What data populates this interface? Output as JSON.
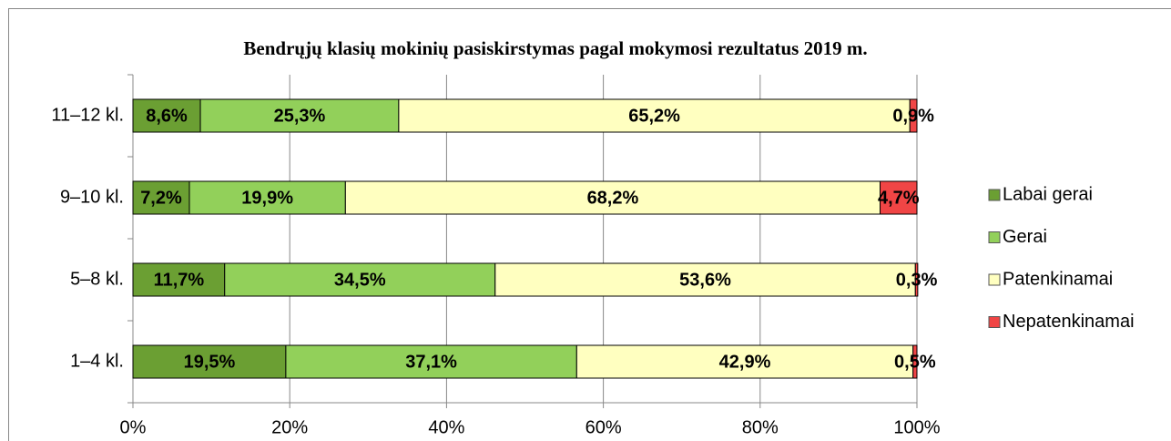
{
  "chart_data": {
    "type": "stacked_barh",
    "title": "Bendrųjų klasių mokinių pasiskirstymas pagal mokymosi rezultatus 2019 m.",
    "categories": [
      "11–12 kl.",
      "9–10 kl.",
      "5–8 kl.",
      "1–4 kl."
    ],
    "series": [
      {
        "name": "Labai gerai",
        "color": "#6b9f33",
        "values": [
          8.6,
          7.2,
          11.7,
          19.5
        ],
        "value_labels": [
          "8,6%",
          "7,2%",
          "11,7%",
          "19,5%"
        ]
      },
      {
        "name": "Gerai",
        "color": "#92d05a",
        "values": [
          25.3,
          19.9,
          34.5,
          37.1
        ],
        "value_labels": [
          "25,3%",
          "19,9%",
          "34,5%",
          "37,1%"
        ]
      },
      {
        "name": "Patenkinamai",
        "color": "#ffffc0",
        "values": [
          65.2,
          68.2,
          53.6,
          42.9
        ],
        "value_labels": [
          "65,2%",
          "68,2%",
          "53,6%",
          "42,9%"
        ]
      },
      {
        "name": "Nepatenkinamai",
        "color": "#f04545",
        "values": [
          0.9,
          4.7,
          0.3,
          0.5
        ],
        "value_labels": [
          "0,9%",
          "4,7%",
          "0,3%",
          "0,5%"
        ]
      }
    ],
    "xlim": [
      0,
      100
    ],
    "xticks": [
      {
        "value": 0,
        "label": "0%"
      },
      {
        "value": 20,
        "label": "20%"
      },
      {
        "value": 40,
        "label": "40%"
      },
      {
        "value": 60,
        "label": "60%"
      },
      {
        "value": 80,
        "label": "80%"
      },
      {
        "value": 100,
        "label": "100%"
      }
    ],
    "grid": true,
    "legend": "right"
  }
}
